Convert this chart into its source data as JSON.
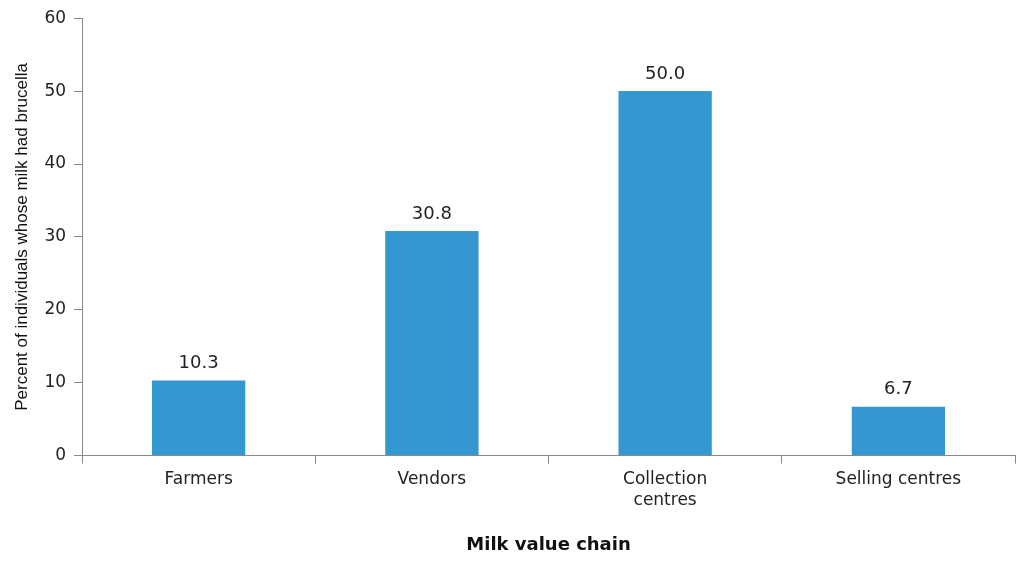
{
  "chart_data": {
    "type": "bar",
    "xlabel": "Milk value chain",
    "ylabel": "Percent of individuals whose milk had brucella",
    "categories": [
      "Farmers",
      "Vendors",
      "Collection centres",
      "Selling centres"
    ],
    "values": [
      10.3,
      30.8,
      50.0,
      6.7
    ],
    "color": "#3497cf",
    "ylim": [
      0,
      60
    ],
    "yticks": [
      0,
      10,
      20,
      30,
      40,
      50,
      60
    ],
    "grid": false,
    "legend": false,
    "value_labels": [
      "10.3",
      "30.8",
      "50.0",
      "6.7"
    ]
  }
}
